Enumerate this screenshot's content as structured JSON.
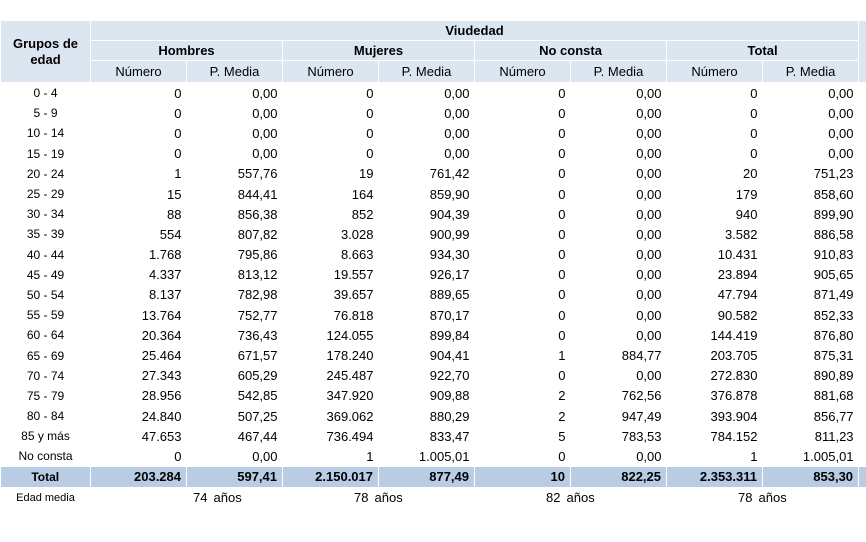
{
  "header": {
    "row_label": "Grupos de edad",
    "title": "Viudedad",
    "groups": [
      {
        "name": "Hombres",
        "columns": [
          "Número",
          "P. Media"
        ]
      },
      {
        "name": "Mujeres",
        "columns": [
          "Número",
          "P. Media"
        ]
      },
      {
        "name": "No consta",
        "columns": [
          "Número",
          "P. Media"
        ]
      },
      {
        "name": "Total",
        "columns": [
          "Número",
          "P. Media"
        ]
      }
    ]
  },
  "rows": [
    {
      "label": "0 - 4",
      "values": [
        "0",
        "0,00",
        "0",
        "0,00",
        "0",
        "0,00",
        "0",
        "0,00"
      ]
    },
    {
      "label": "5 - 9",
      "values": [
        "0",
        "0,00",
        "0",
        "0,00",
        "0",
        "0,00",
        "0",
        "0,00"
      ]
    },
    {
      "label": "10 - 14",
      "values": [
        "0",
        "0,00",
        "0",
        "0,00",
        "0",
        "0,00",
        "0",
        "0,00"
      ]
    },
    {
      "label": "15 - 19",
      "values": [
        "0",
        "0,00",
        "0",
        "0,00",
        "0",
        "0,00",
        "0",
        "0,00"
      ]
    },
    {
      "label": "20 - 24",
      "values": [
        "1",
        "557,76",
        "19",
        "761,42",
        "0",
        "0,00",
        "20",
        "751,23"
      ]
    },
    {
      "label": "25 - 29",
      "values": [
        "15",
        "844,41",
        "164",
        "859,90",
        "0",
        "0,00",
        "179",
        "858,60"
      ]
    },
    {
      "label": "30 - 34",
      "values": [
        "88",
        "856,38",
        "852",
        "904,39",
        "0",
        "0,00",
        "940",
        "899,90"
      ]
    },
    {
      "label": "35 - 39",
      "values": [
        "554",
        "807,82",
        "3.028",
        "900,99",
        "0",
        "0,00",
        "3.582",
        "886,58"
      ]
    },
    {
      "label": "40 - 44",
      "values": [
        "1.768",
        "795,86",
        "8.663",
        "934,30",
        "0",
        "0,00",
        "10.431",
        "910,83"
      ]
    },
    {
      "label": "45 - 49",
      "values": [
        "4.337",
        "813,12",
        "19.557",
        "926,17",
        "0",
        "0,00",
        "23.894",
        "905,65"
      ]
    },
    {
      "label": "50 - 54",
      "values": [
        "8.137",
        "782,98",
        "39.657",
        "889,65",
        "0",
        "0,00",
        "47.794",
        "871,49"
      ]
    },
    {
      "label": "55 - 59",
      "values": [
        "13.764",
        "752,77",
        "76.818",
        "870,17",
        "0",
        "0,00",
        "90.582",
        "852,33"
      ]
    },
    {
      "label": "60 - 64",
      "values": [
        "20.364",
        "736,43",
        "124.055",
        "899,84",
        "0",
        "0,00",
        "144.419",
        "876,80"
      ]
    },
    {
      "label": "65 - 69",
      "values": [
        "25.464",
        "671,57",
        "178.240",
        "904,41",
        "1",
        "884,77",
        "203.705",
        "875,31"
      ]
    },
    {
      "label": "70 - 74",
      "values": [
        "27.343",
        "605,29",
        "245.487",
        "922,70",
        "0",
        "0,00",
        "272.830",
        "890,89"
      ]
    },
    {
      "label": "75 - 79",
      "values": [
        "28.956",
        "542,85",
        "347.920",
        "909,88",
        "2",
        "762,56",
        "376.878",
        "881,68"
      ]
    },
    {
      "label": "80 - 84",
      "values": [
        "24.840",
        "507,25",
        "369.062",
        "880,29",
        "2",
        "947,49",
        "393.904",
        "856,77"
      ]
    },
    {
      "label": "85 y más",
      "values": [
        "47.653",
        "467,44",
        "736.494",
        "833,47",
        "5",
        "783,53",
        "784.152",
        "811,23"
      ]
    },
    {
      "label": "No consta",
      "values": [
        "0",
        "0,00",
        "1",
        "1.005,01",
        "0",
        "0,00",
        "1",
        "1.005,01"
      ]
    }
  ],
  "total": {
    "label": "Total",
    "values": [
      "203.284",
      "597,41",
      "2.150.017",
      "877,49",
      "10",
      "822,25",
      "2.353.311",
      "853,30"
    ]
  },
  "edad_media": {
    "label": "Edad media",
    "values": [
      "74",
      "78",
      "82",
      "78"
    ],
    "unit": "años"
  }
}
